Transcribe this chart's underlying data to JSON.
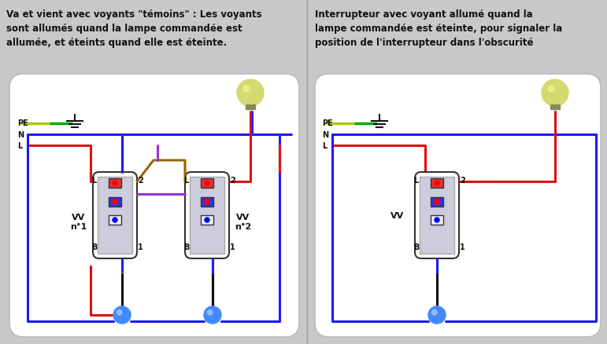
{
  "bg_color": "#c8c8c8",
  "panel_bg": "#e8e8e8",
  "white": "#ffffff",
  "title1": "Va et vient avec voyants \"témoins\" : Les voyants\nsont allumés quand la lampe commandée est\nallumée, et éteints quand elle est éteinte.",
  "title2": "Interrupteur avec voyant allumé quand la\nlampe commandée est éteinte, pour signaler la\nposition de l'interrupteur dans l'obscurité",
  "color_green": "#00aa00",
  "color_blue": "#1a1aff",
  "color_red": "#dd1111",
  "color_purple": "#9933cc",
  "color_brown": "#996600",
  "color_black": "#111111",
  "color_yellow_green": "#aacc00",
  "label_PE": "PE",
  "label_N": "N",
  "label_L": "L",
  "label_VV1": "VV\nn°1",
  "label_VV2": "VV\nn°2",
  "label_VV": "VV",
  "label_B": "B",
  "label_1": "1",
  "label_2": "2"
}
